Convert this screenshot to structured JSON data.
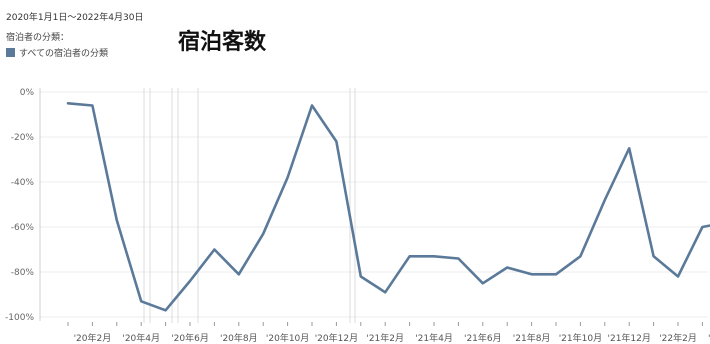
{
  "header": {
    "date_range": "2020年1月1日～2022年4月30日",
    "legend_title": "宿泊者の分類：",
    "legend_item": "すべての宿泊者の分類"
  },
  "chart_data": {
    "type": "line",
    "title": "宿泊客数",
    "xlabel": "",
    "ylabel": "",
    "ylim": [
      -100,
      0
    ],
    "y_ticks": [
      "0%",
      "-20%",
      "-40%",
      "-60%",
      "-80%",
      "-100%"
    ],
    "tick_labels": [
      "'20年2月",
      "'20年4月",
      "'20年6月",
      "'20年8月",
      "'20年10月",
      "'20年12月",
      "'21年2月",
      "'21年4月",
      "'21年6月",
      "'21年8月",
      "'21年10月",
      "'21年12月",
      "'22年2月",
      "'22年4月"
    ],
    "categories": [
      "2020-01",
      "2020-02",
      "2020-03",
      "2020-04",
      "2020-05",
      "2020-06",
      "2020-07",
      "2020-08",
      "2020-09",
      "2020-10",
      "2020-11",
      "2020-12",
      "2021-01",
      "2021-02",
      "2021-03",
      "2021-04",
      "2021-05",
      "2021-06",
      "2021-07",
      "2021-08",
      "2021-09",
      "2021-10",
      "2021-11",
      "2021-12",
      "2022-01",
      "2022-02",
      "2022-03",
      "2022-04"
    ],
    "series": [
      {
        "name": "すべての宿泊者の分類",
        "color": "#5B7A99",
        "values": [
          -5,
          -6,
          -57,
          -93,
          -97,
          -84,
          -70,
          -81,
          -63,
          -38,
          -6,
          -22,
          -82,
          -89,
          -73,
          -73,
          -74,
          -85,
          -78,
          -81,
          -81,
          -73,
          -48,
          -25,
          -73,
          -82,
          -60,
          -58
        ]
      }
    ],
    "grid": true,
    "legend": "top-left"
  }
}
